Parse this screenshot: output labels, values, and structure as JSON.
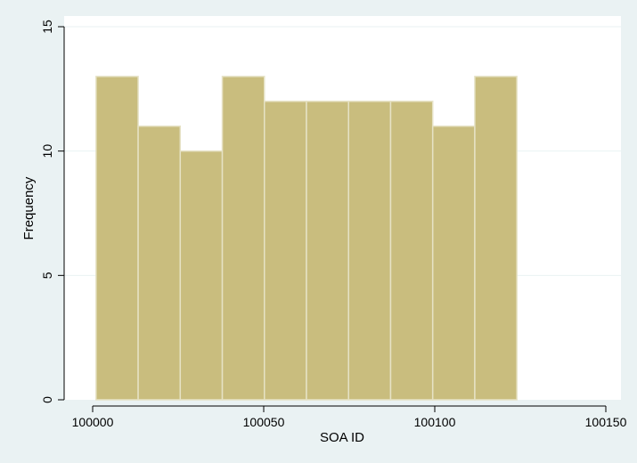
{
  "chart_data": {
    "type": "bar",
    "subtype": "histogram",
    "title": "",
    "xlabel": "SOA ID",
    "ylabel": "Frequency",
    "bins": [
      {
        "start": 100001,
        "end": 100013.3,
        "value": 13
      },
      {
        "start": 100013.3,
        "end": 100025.6,
        "value": 11
      },
      {
        "start": 100025.6,
        "end": 100037.9,
        "value": 10
      },
      {
        "start": 100037.9,
        "end": 100050.2,
        "value": 13
      },
      {
        "start": 100050.2,
        "end": 100062.5,
        "value": 12
      },
      {
        "start": 100062.5,
        "end": 100074.8,
        "value": 12
      },
      {
        "start": 100074.8,
        "end": 100087.1,
        "value": 12
      },
      {
        "start": 100087.1,
        "end": 100099.4,
        "value": 12
      },
      {
        "start": 100099.4,
        "end": 100111.7,
        "value": 11
      },
      {
        "start": 100111.7,
        "end": 100124,
        "value": 13
      }
    ],
    "xlim": [
      99990,
      100150
    ],
    "ylim": [
      0,
      15
    ],
    "x_ticks": [
      100000,
      100050,
      100100,
      100150
    ],
    "y_ticks": [
      0,
      5,
      10,
      15
    ],
    "grid": true,
    "colors": {
      "bar_fill": "#c9bd7e",
      "bar_stroke": "#e6e2c5",
      "plot_bg": "#ffffff",
      "outer_bg": "#eaf2f3",
      "grid": "#eaf2f3",
      "axis": "#000000"
    }
  }
}
